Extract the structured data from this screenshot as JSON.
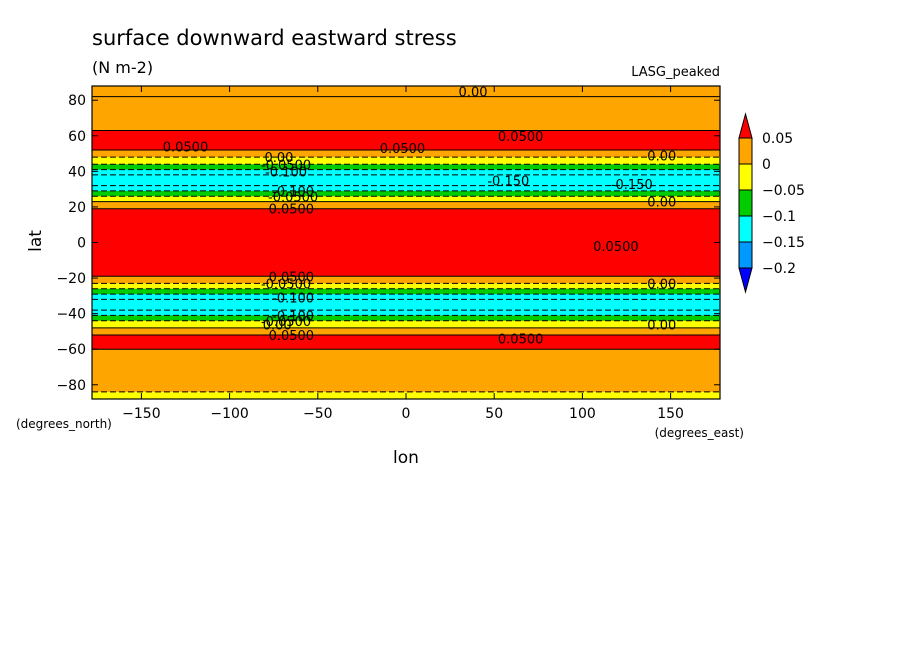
{
  "chart_data": {
    "type": "heatmap",
    "title": "surface downward eastward stress",
    "subtitle": "(N m-2)",
    "dataset_label": "LASG_peaked",
    "xlabel": "lon",
    "ylabel": "lat",
    "x_units": "(degrees_east)",
    "y_units": "(degrees_north)",
    "xlim": [
      -178,
      178
    ],
    "ylim": [
      -88,
      88
    ],
    "x_ticks": [
      -150,
      -100,
      -50,
      0,
      50,
      100,
      150
    ],
    "y_ticks": [
      80,
      60,
      40,
      20,
      0,
      -20,
      -40,
      -60,
      -80
    ],
    "colorbar": {
      "levels": [
        0.05,
        0,
        -0.05,
        -0.1,
        -0.15,
        -0.2
      ],
      "tick_labels": [
        "0.05",
        "0",
        "−0.05",
        "−0.1",
        "−0.15",
        "−0.2"
      ],
      "colors": [
        "#ff0000",
        "#ffa500",
        "#ffff00",
        "#00cc00",
        "#00ffff",
        "#0099ff",
        "#0000ff"
      ]
    },
    "zonal_bands": [
      {
        "lat_max": 88,
        "lat_min": 82,
        "value": 0.01
      },
      {
        "lat_max": 82,
        "lat_min": 63,
        "value": 0.03
      },
      {
        "lat_max": 63,
        "lat_min": 52,
        "value": 0.06
      },
      {
        "lat_max": 52,
        "lat_min": 48,
        "value": 0.02
      },
      {
        "lat_max": 48,
        "lat_min": 44,
        "value": -0.02
      },
      {
        "lat_max": 44,
        "lat_min": 41,
        "value": -0.07
      },
      {
        "lat_max": 41,
        "lat_min": 38,
        "value": -0.11
      },
      {
        "lat_max": 38,
        "lat_min": 32,
        "value": -0.14
      },
      {
        "lat_max": 32,
        "lat_min": 29,
        "value": -0.11
      },
      {
        "lat_max": 29,
        "lat_min": 26,
        "value": -0.07
      },
      {
        "lat_max": 26,
        "lat_min": 23,
        "value": -0.02
      },
      {
        "lat_max": 23,
        "lat_min": 19,
        "value": 0.02
      },
      {
        "lat_max": 19,
        "lat_min": -19,
        "value": 0.07
      },
      {
        "lat_max": -19,
        "lat_min": -23,
        "value": 0.02
      },
      {
        "lat_max": -23,
        "lat_min": -26,
        "value": -0.02
      },
      {
        "lat_max": -26,
        "lat_min": -29,
        "value": -0.07
      },
      {
        "lat_max": -29,
        "lat_min": -32,
        "value": -0.11
      },
      {
        "lat_max": -32,
        "lat_min": -38,
        "value": -0.14
      },
      {
        "lat_max": -38,
        "lat_min": -41,
        "value": -0.11
      },
      {
        "lat_max": -41,
        "lat_min": -44,
        "value": -0.07
      },
      {
        "lat_max": -44,
        "lat_min": -48,
        "value": -0.02
      },
      {
        "lat_max": -48,
        "lat_min": -52,
        "value": 0.02
      },
      {
        "lat_max": -52,
        "lat_min": -60,
        "value": 0.06
      },
      {
        "lat_max": -60,
        "lat_min": -84,
        "value": 0.03
      },
      {
        "lat_max": -84,
        "lat_min": -88,
        "value": -0.02
      }
    ],
    "contour_labels": [
      {
        "text": "0.00",
        "lon": 38,
        "lat": 85
      },
      {
        "text": "0.0500",
        "lon": 65,
        "lat": 60
      },
      {
        "text": "0.0500",
        "lon": -125,
        "lat": 54
      },
      {
        "text": "0.0500",
        "lon": -2,
        "lat": 53
      },
      {
        "text": "0.00",
        "lon": -72,
        "lat": 48
      },
      {
        "text": "0.00",
        "lon": 145,
        "lat": 49
      },
      {
        "text": "-0.0500",
        "lon": -68,
        "lat": 44
      },
      {
        "text": "-0.100",
        "lon": -68,
        "lat": 40
      },
      {
        "text": "-0.150",
        "lon": 58,
        "lat": 35
      },
      {
        "text": "-0.150",
        "lon": 128,
        "lat": 33
      },
      {
        "text": "-0.100",
        "lon": -64,
        "lat": 29
      },
      {
        "text": "-0.0500",
        "lon": -64,
        "lat": 26
      },
      {
        "text": "0.00",
        "lon": 145,
        "lat": 23
      },
      {
        "text": "0.0500",
        "lon": -65,
        "lat": 19
      },
      {
        "text": "0.0500",
        "lon": 119,
        "lat": -2
      },
      {
        "text": "0.0500",
        "lon": -65,
        "lat": -19
      },
      {
        "text": "0.00",
        "lon": 145,
        "lat": -23
      },
      {
        "text": "-0.0500",
        "lon": -68,
        "lat": -23
      },
      {
        "text": "-0.100",
        "lon": -64,
        "lat": -31
      },
      {
        "text": "-0.100",
        "lon": -64,
        "lat": -41
      },
      {
        "text": "-0.0500",
        "lon": -68,
        "lat": -44
      },
      {
        "text": "0.00",
        "lon": -73,
        "lat": -46
      },
      {
        "text": "0.00",
        "lon": 145,
        "lat": -46
      },
      {
        "text": "0.0500",
        "lon": -65,
        "lat": -52
      },
      {
        "text": "0.0500",
        "lon": 65,
        "lat": -54
      }
    ]
  }
}
